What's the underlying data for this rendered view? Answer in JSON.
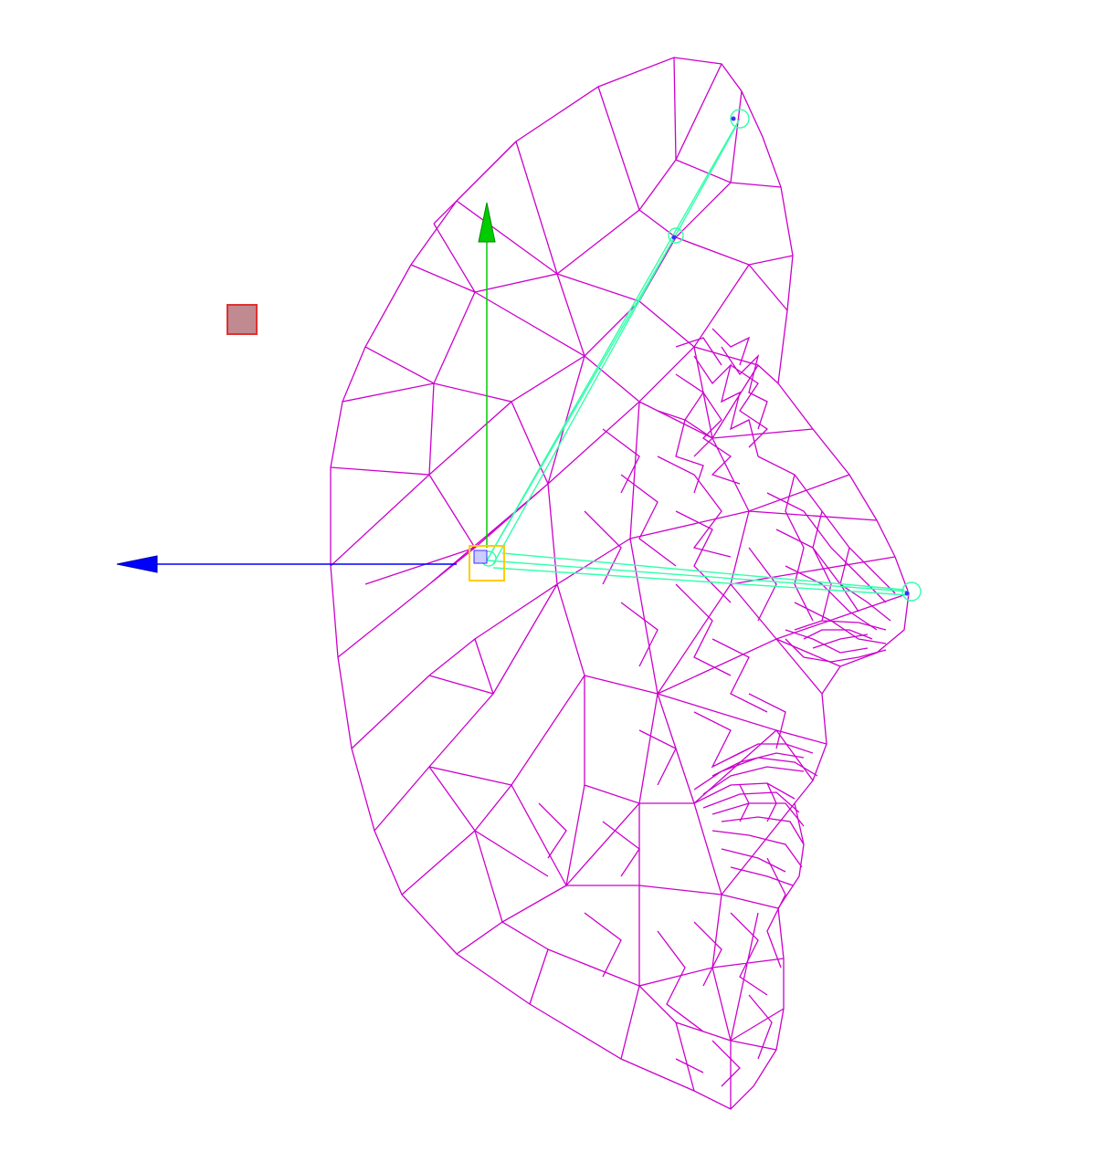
{
  "viewport": {
    "background": "#ffffff",
    "mesh_color": "#cc00cc",
    "rig_color": "#33ffaa",
    "gizmo_y_color": "#00cc00",
    "gizmo_z_color": "#0000ff",
    "selection_color": "#ffcc00",
    "marker_fill": "#c08a90",
    "marker_stroke": "#e03030"
  }
}
